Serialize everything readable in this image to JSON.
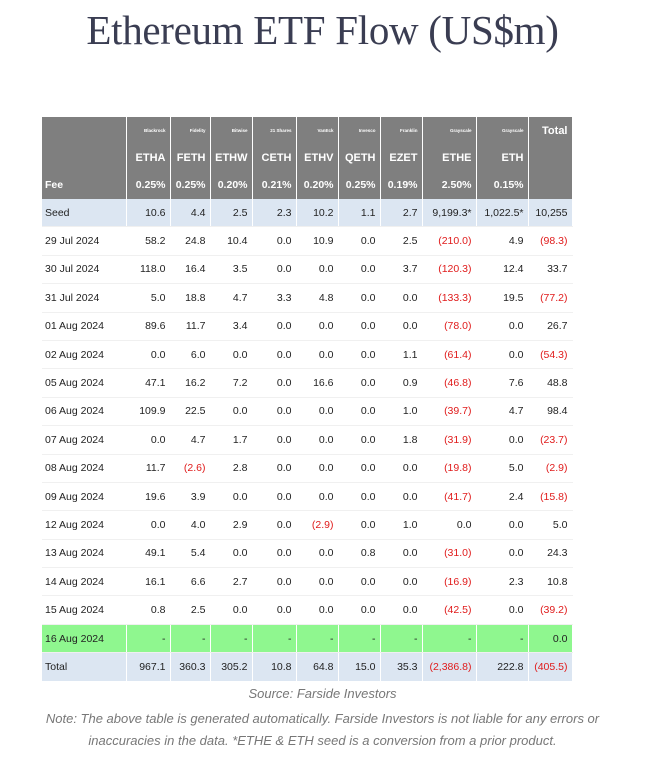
{
  "title": "Ethereum ETF Flow (US$m)",
  "table": {
    "providers": [
      "",
      "Blackrock",
      "Fidelity",
      "Bitwise",
      "21 Shares",
      "VanEck",
      "Invesco",
      "Franklin",
      "Grayscale",
      "Grayscale",
      "Total"
    ],
    "tickers": [
      "",
      "ETHA",
      "FETH",
      "ETHW",
      "CETH",
      "ETHV",
      "QETH",
      "EZET",
      "ETHE",
      "ETH",
      ""
    ],
    "fees": [
      "Fee",
      "0.25%",
      "0.25%",
      "0.20%",
      "0.21%",
      "0.20%",
      "0.25%",
      "0.19%",
      "2.50%",
      "0.15%",
      ""
    ],
    "rows": [
      {
        "cells": [
          "Seed",
          "10.6",
          "4.4",
          "2.5",
          "2.3",
          "10.2",
          "1.1",
          "2.7",
          "9,199.3*",
          "1,022.5*",
          "10,255"
        ],
        "type": "seed"
      },
      {
        "cells": [
          "29 Jul 2024",
          "58.2",
          "24.8",
          "10.4",
          "0.0",
          "10.9",
          "0.0",
          "2.5",
          "(210.0)",
          "4.9",
          "(98.3)"
        ]
      },
      {
        "cells": [
          "30 Jul 2024",
          "118.0",
          "16.4",
          "3.5",
          "0.0",
          "0.0",
          "0.0",
          "3.7",
          "(120.3)",
          "12.4",
          "33.7"
        ]
      },
      {
        "cells": [
          "31 Jul 2024",
          "5.0",
          "18.8",
          "4.7",
          "3.3",
          "4.8",
          "0.0",
          "0.0",
          "(133.3)",
          "19.5",
          "(77.2)"
        ]
      },
      {
        "cells": [
          "01 Aug 2024",
          "89.6",
          "11.7",
          "3.4",
          "0.0",
          "0.0",
          "0.0",
          "0.0",
          "(78.0)",
          "0.0",
          "26.7"
        ]
      },
      {
        "cells": [
          "02 Aug 2024",
          "0.0",
          "6.0",
          "0.0",
          "0.0",
          "0.0",
          "0.0",
          "1.1",
          "(61.4)",
          "0.0",
          "(54.3)"
        ]
      },
      {
        "cells": [
          "05 Aug 2024",
          "47.1",
          "16.2",
          "7.2",
          "0.0",
          "16.6",
          "0.0",
          "0.9",
          "(46.8)",
          "7.6",
          "48.8"
        ]
      },
      {
        "cells": [
          "06 Aug 2024",
          "109.9",
          "22.5",
          "0.0",
          "0.0",
          "0.0",
          "0.0",
          "1.0",
          "(39.7)",
          "4.7",
          "98.4"
        ]
      },
      {
        "cells": [
          "07 Aug 2024",
          "0.0",
          "4.7",
          "1.7",
          "0.0",
          "0.0",
          "0.0",
          "1.8",
          "(31.9)",
          "0.0",
          "(23.7)"
        ]
      },
      {
        "cells": [
          "08 Aug 2024",
          "11.7",
          "(2.6)",
          "2.8",
          "0.0",
          "0.0",
          "0.0",
          "0.0",
          "(19.8)",
          "5.0",
          "(2.9)"
        ]
      },
      {
        "cells": [
          "09 Aug 2024",
          "19.6",
          "3.9",
          "0.0",
          "0.0",
          "0.0",
          "0.0",
          "0.0",
          "(41.7)",
          "2.4",
          "(15.8)"
        ]
      },
      {
        "cells": [
          "12 Aug 2024",
          "0.0",
          "4.0",
          "2.9",
          "0.0",
          "(2.9)",
          "0.0",
          "1.0",
          "0.0",
          "0.0",
          "5.0"
        ]
      },
      {
        "cells": [
          "13 Aug 2024",
          "49.1",
          "5.4",
          "0.0",
          "0.0",
          "0.0",
          "0.8",
          "0.0",
          "(31.0)",
          "0.0",
          "24.3"
        ]
      },
      {
        "cells": [
          "14 Aug 2024",
          "16.1",
          "6.6",
          "2.7",
          "0.0",
          "0.0",
          "0.0",
          "0.0",
          "(16.9)",
          "2.3",
          "10.8"
        ]
      },
      {
        "cells": [
          "15 Aug 2024",
          "0.8",
          "2.5",
          "0.0",
          "0.0",
          "0.0",
          "0.0",
          "0.0",
          "(42.5)",
          "0.0",
          "(39.2)"
        ]
      },
      {
        "cells": [
          "16 Aug 2024",
          "-",
          "-",
          "-",
          "-",
          "-",
          "-",
          "-",
          "-",
          "-",
          "0.0"
        ],
        "highlight": true
      }
    ],
    "totals": [
      "Total",
      "967.1",
      "360.3",
      "305.2",
      "10.8",
      "64.8",
      "15.0",
      "35.3",
      "(2,386.8)",
      "222.8",
      "(405.5)"
    ]
  },
  "source": "Source: Farside Investors",
  "note": "Note: The above table is generated automatically. Farside Investors is not liable for any errors or inaccuracies in the data. *ETHE & ETH seed is a conversion from a prior product.",
  "colors": {
    "header_bg": "#7f7f7f",
    "seed_row_bg": "#dce6f2",
    "highlight_row_bg": "#8ff78f",
    "negative_text": "#e01b1b",
    "title_text": "#3a3d52"
  }
}
